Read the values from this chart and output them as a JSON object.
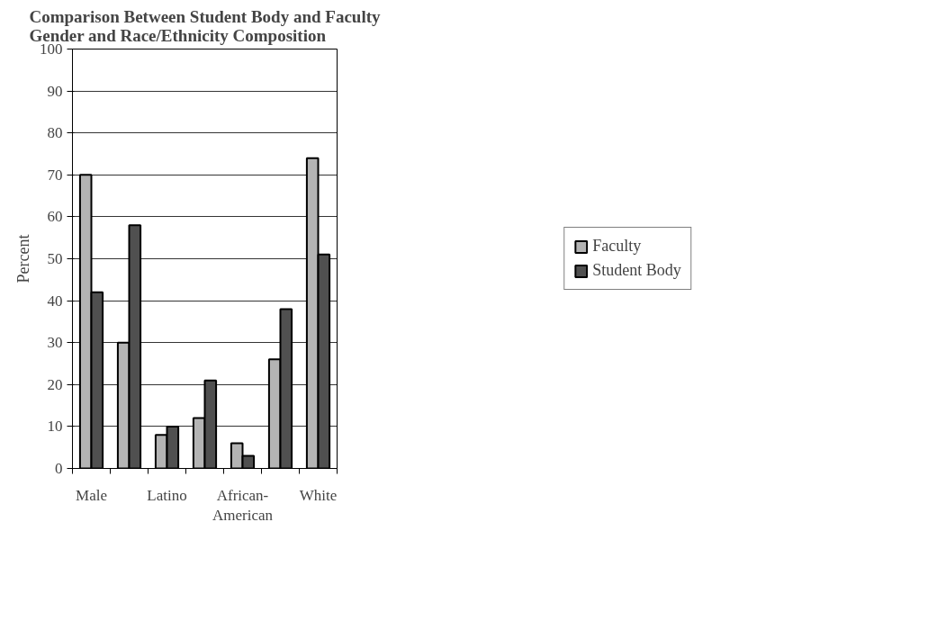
{
  "chart_data": {
    "type": "bar",
    "title": "Comparison Between Student Body and Faculty\nGender and Race/Ethnicity Composition",
    "ylabel": "Percent",
    "categories": [
      "Male",
      null,
      "Latino",
      null,
      "African-\nAmerican",
      null,
      "White"
    ],
    "series": [
      {
        "name": "Faculty",
        "color": "#b4b4b4",
        "values": [
          70,
          30,
          8,
          12,
          6,
          26,
          74
        ]
      },
      {
        "name": "Student Body",
        "color": "#505050",
        "values": [
          42,
          58,
          10,
          21,
          3,
          38,
          51
        ]
      }
    ],
    "ylim": [
      0,
      100
    ],
    "yticks": [
      0,
      10,
      20,
      30,
      40,
      50,
      60,
      70,
      80,
      90,
      100
    ],
    "grid": "y",
    "legend": "right"
  }
}
